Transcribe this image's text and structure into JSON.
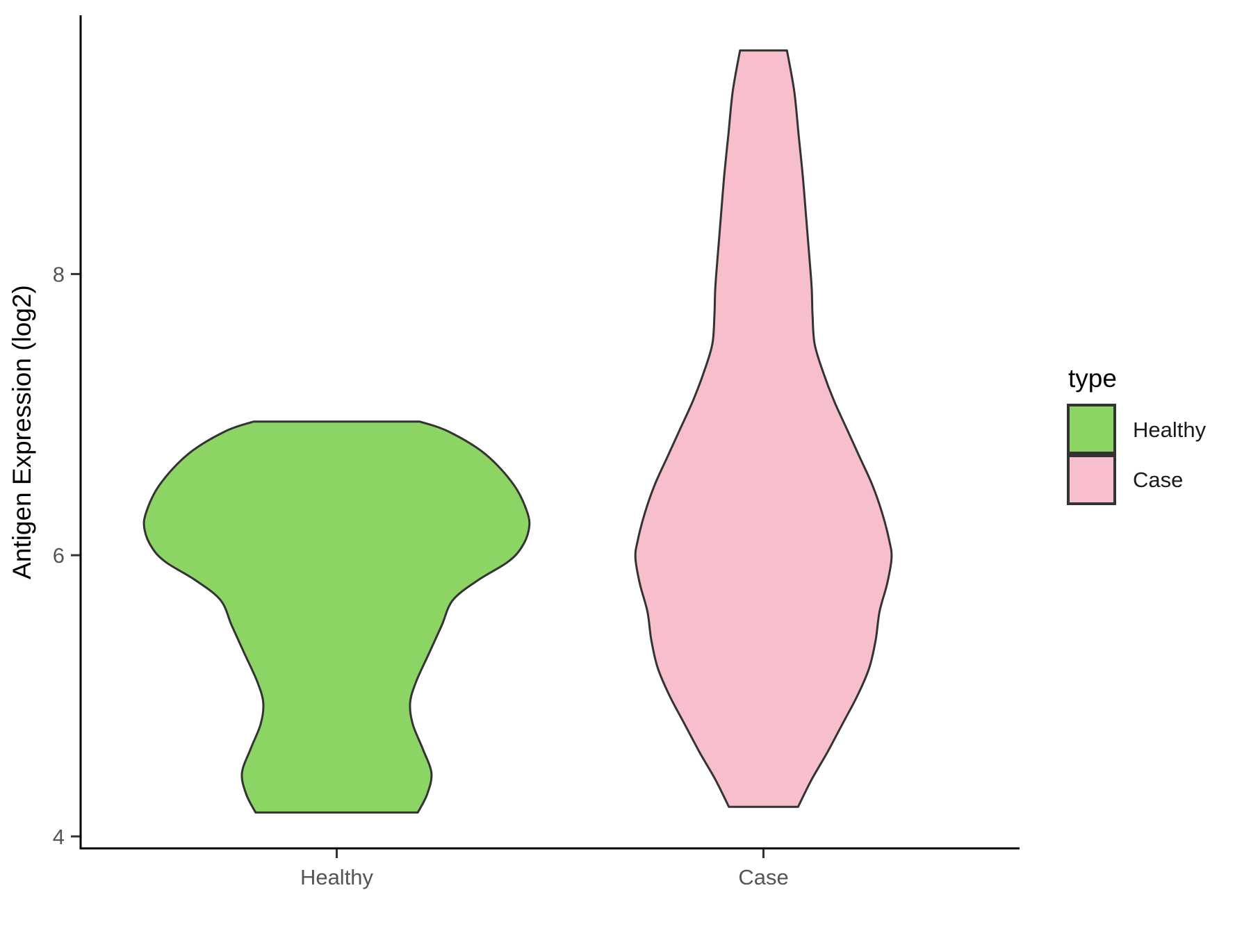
{
  "figure": {
    "background": "#ffffff"
  },
  "y_axis": {
    "title": "Antigen Expression (log2)",
    "tick_labels": [
      "4",
      "6",
      "8"
    ],
    "tick_values": [
      4,
      6,
      8
    ],
    "range": [
      3.92,
      9.84
    ]
  },
  "x_axis": {
    "categories": [
      "Healthy",
      "Case"
    ]
  },
  "legend": {
    "title": "type",
    "items": [
      {
        "label": "Healthy",
        "color": "#8CD564"
      },
      {
        "label": "Case",
        "color": "#F6BFCB"
      }
    ]
  },
  "style_colors": {
    "violin_outline": "#333333",
    "axis_line": "#000000",
    "tick_mark": "#333333",
    "tick_text": "#555555"
  },
  "chart_data": {
    "type": "violin",
    "title": "",
    "xlabel": "",
    "ylabel": "Antigen Expression (log2)",
    "categories": [
      "Healthy",
      "Case"
    ],
    "legend_title": "type",
    "legend_position": "right",
    "grid": false,
    "y_ticks": [
      4,
      6,
      8
    ],
    "y_range": [
      3.92,
      9.84
    ],
    "x_positions_range": [
      0.4,
      2.6
    ],
    "series": [
      {
        "name": "Healthy",
        "x_position": 1,
        "color": "#8CD564",
        "outline": "#333333",
        "y_min": 4.17,
        "y_max": 6.95,
        "widest_at": 6.2,
        "profile": [
          [
            6.95,
            0.195
          ],
          [
            6.88,
            0.262
          ],
          [
            6.72,
            0.348
          ],
          [
            6.5,
            0.415
          ],
          [
            6.3,
            0.447
          ],
          [
            6.18,
            0.45
          ],
          [
            6.05,
            0.432
          ],
          [
            5.95,
            0.4
          ],
          [
            5.82,
            0.33
          ],
          [
            5.68,
            0.272
          ],
          [
            5.5,
            0.246
          ],
          [
            5.3,
            0.216
          ],
          [
            5.1,
            0.186
          ],
          [
            4.95,
            0.172
          ],
          [
            4.8,
            0.178
          ],
          [
            4.62,
            0.202
          ],
          [
            4.45,
            0.222
          ],
          [
            4.3,
            0.212
          ],
          [
            4.17,
            0.19
          ]
        ]
      },
      {
        "name": "Case",
        "x_position": 2,
        "color": "#F6BFCB",
        "outline": "#333333",
        "y_min": 4.21,
        "y_max": 9.59,
        "widest_at": 6.0,
        "profile": [
          [
            9.59,
            0.055
          ],
          [
            9.3,
            0.072
          ],
          [
            9.0,
            0.082
          ],
          [
            8.7,
            0.092
          ],
          [
            8.4,
            0.1
          ],
          [
            8.1,
            0.108
          ],
          [
            7.9,
            0.113
          ],
          [
            7.7,
            0.115
          ],
          [
            7.5,
            0.12
          ],
          [
            7.3,
            0.14
          ],
          [
            7.1,
            0.165
          ],
          [
            6.9,
            0.195
          ],
          [
            6.7,
            0.225
          ],
          [
            6.5,
            0.255
          ],
          [
            6.3,
            0.278
          ],
          [
            6.1,
            0.295
          ],
          [
            5.98,
            0.3
          ],
          [
            5.8,
            0.29
          ],
          [
            5.6,
            0.272
          ],
          [
            5.4,
            0.263
          ],
          [
            5.2,
            0.248
          ],
          [
            5.0,
            0.22
          ],
          [
            4.8,
            0.185
          ],
          [
            4.6,
            0.15
          ],
          [
            4.4,
            0.112
          ],
          [
            4.21,
            0.081
          ]
        ]
      }
    ]
  }
}
